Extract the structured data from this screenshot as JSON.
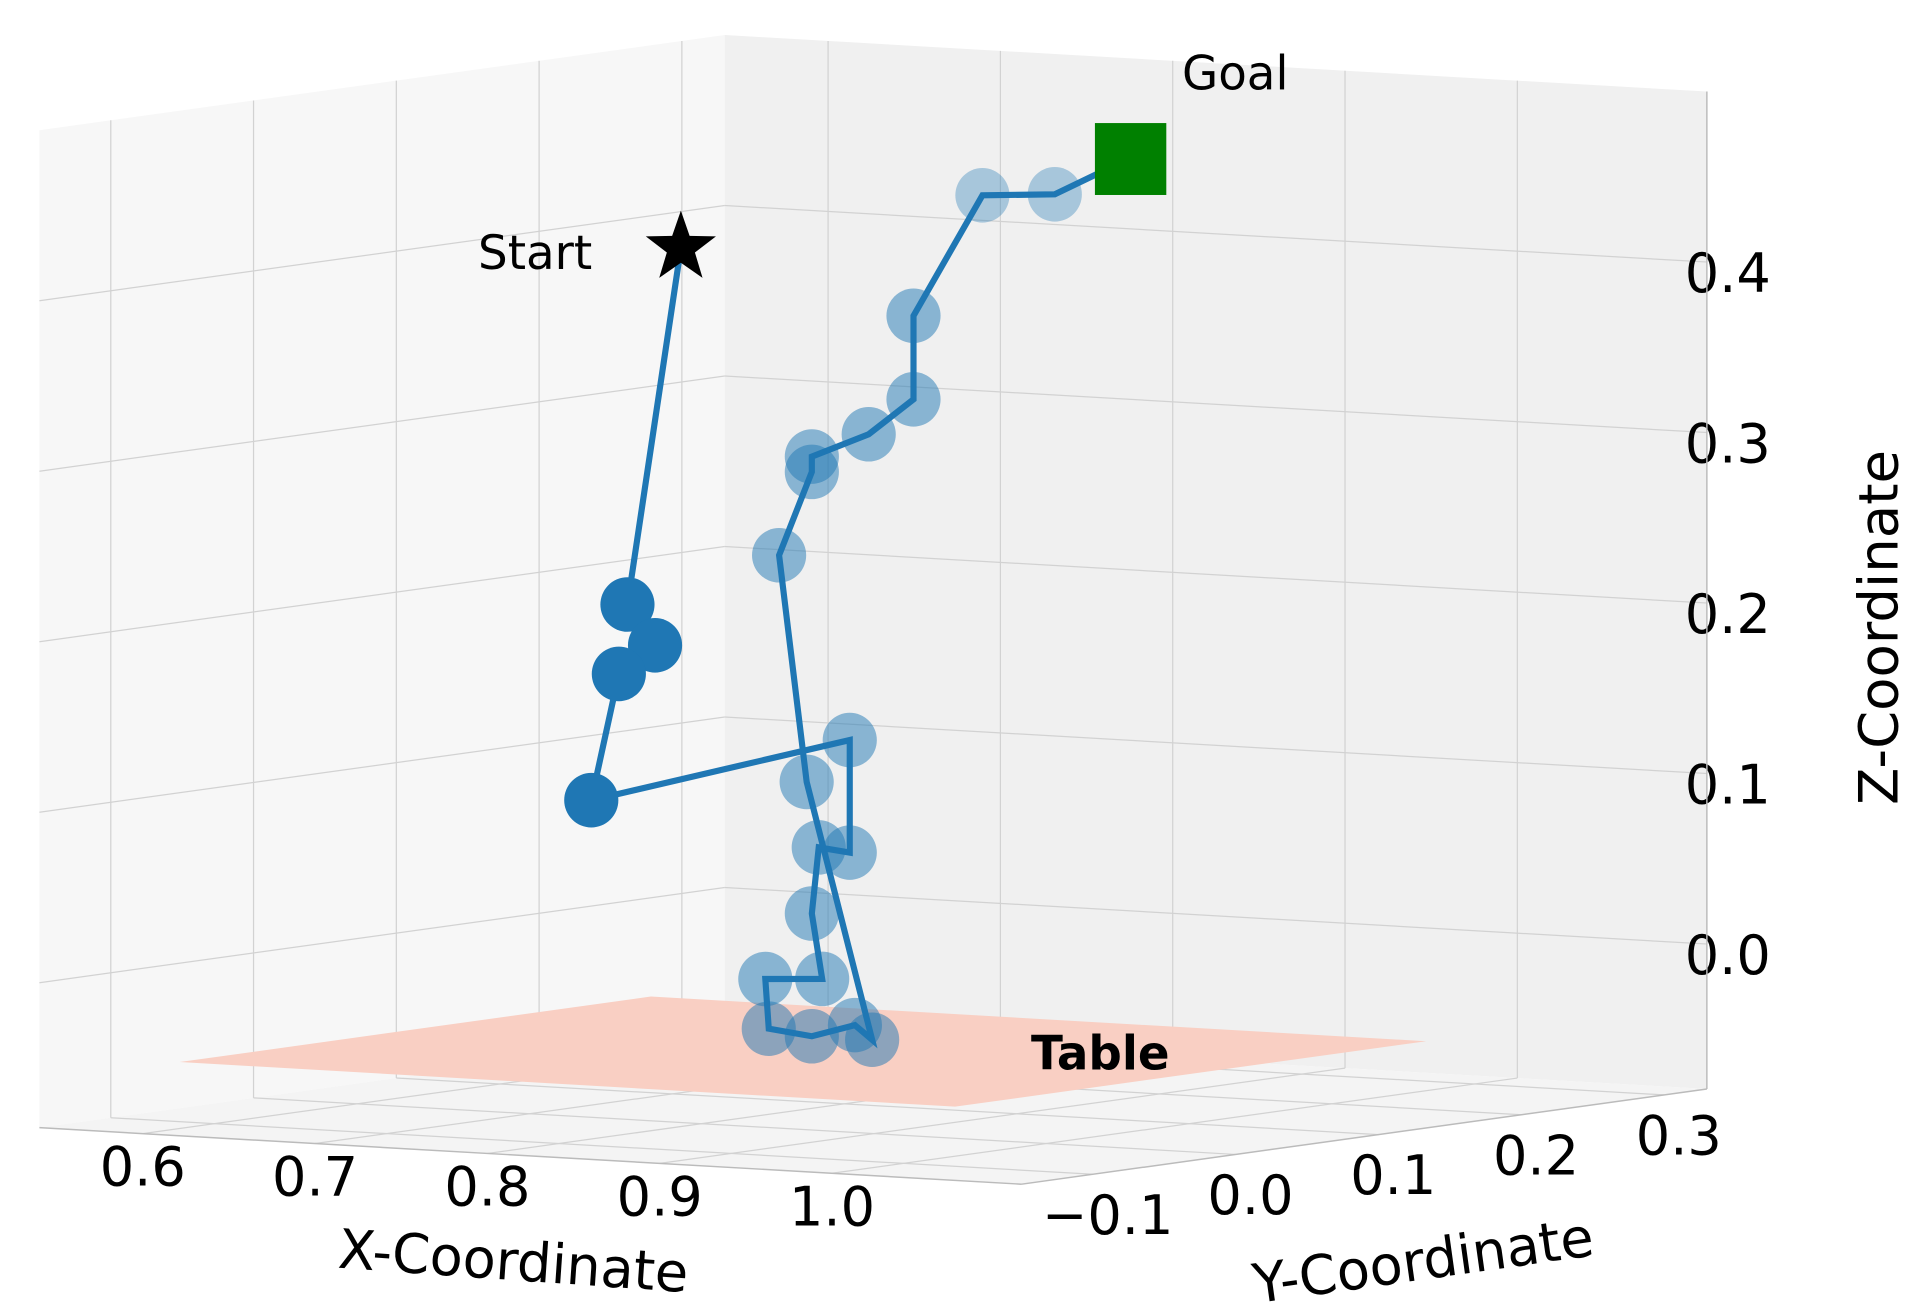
{
  "chart_data": {
    "type": "scatter3d",
    "xlabel": "X-Coordinate",
    "ylabel": "Y-Coordinate",
    "zlabel": "Z-Coordinate",
    "xlim": [
      0.54,
      1.11
    ],
    "ylim": [
      -0.15,
      0.33
    ],
    "zlim": [
      -0.085,
      0.5
    ],
    "xticks": [
      0.6,
      0.7,
      0.8,
      0.9,
      {
        "value": 1.0,
        "label": "1.0"
      }
    ],
    "yticks": [
      {
        "value": -0.1,
        "label": "−0.1"
      },
      {
        "value": 0,
        "label": "0.0"
      },
      0.1,
      0.2,
      0.3
    ],
    "zticks": [
      {
        "value": 0,
        "label": "0.0"
      },
      0.1,
      0.2,
      0.3,
      0.4
    ],
    "grid": true,
    "trajectory": {
      "color": "#1f77b4",
      "x": [
        0.757,
        0.773,
        0.752,
        0.736,
        0.886,
        0.886,
        0.868,
        0.864,
        0.87,
        0.837,
        0.839,
        0.864,
        0.889,
        0.899,
        0.861,
        0.845,
        0.864,
        0.864,
        0.897,
        0.923,
        0.923,
        0.963,
        1.005
      ],
      "y": [
        0,
        0,
        0,
        0,
        0,
        0,
        0,
        0,
        0,
        0,
        0,
        0,
        0,
        0,
        0,
        0,
        0,
        0,
        0,
        0,
        0,
        0,
        0
      ],
      "z": [
        0.217,
        0.194,
        0.176,
        0.101,
        0.145,
        0.079,
        0.081,
        0.042,
        0.004,
        0.002,
        -0.027,
        -0.03,
        -0.022,
        -0.03,
        0.119,
        0.251,
        0.301,
        0.31,
        0.325,
        0.347,
        0.396,
        0.469,
        0.472
      ],
      "alpha": [
        1,
        1,
        1,
        1,
        0.5,
        0.5,
        0.5,
        0.5,
        0.5,
        0.5,
        0.5,
        0.5,
        0.5,
        0.5,
        0.5,
        0.5,
        0.5,
        0.5,
        0.5,
        0.5,
        0.5,
        0.35,
        0.35
      ]
    },
    "start": {
      "label": "Start",
      "x": 0.788,
      "y": 0,
      "z": 0.428,
      "color": "#000000"
    },
    "goal": {
      "label": "Goal",
      "x": 1.049,
      "y": 0,
      "z": 0.496,
      "color": "#008000"
    },
    "table": {
      "label": "Table",
      "x": [
        0.58,
        1.03
      ],
      "y": [
        -0.1,
        0.23
      ],
      "z": -0.05,
      "color": "#f9cfc3"
    }
  }
}
